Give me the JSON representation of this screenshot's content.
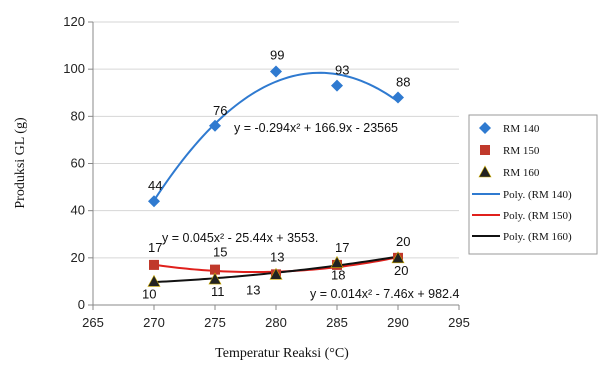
{
  "chart_data": {
    "type": "scatter",
    "xlabel": "Temperatur Reaksi (°C)",
    "ylabel": "Produksi GL (g)",
    "xlim": [
      265,
      295
    ],
    "ylim": [
      0,
      120
    ],
    "x_ticks": [
      "265",
      "270",
      "275",
      "280",
      "285",
      "290",
      "295"
    ],
    "y_ticks": [
      "0",
      "20",
      "40",
      "60",
      "80",
      "100",
      "120"
    ],
    "grid": "horizontal",
    "legend_position": "right",
    "series": [
      {
        "name": "RM 140",
        "marker": "diamond",
        "color": "#2f7ad0",
        "x": [
          270,
          275,
          280,
          285,
          290
        ],
        "y": [
          44,
          76,
          99,
          93,
          88
        ],
        "labels": [
          "44",
          "76",
          "99",
          "93",
          "88"
        ]
      },
      {
        "name": "RM 150",
        "marker": "square",
        "color": "#c0392b",
        "x": [
          270,
          275,
          280,
          285,
          290
        ],
        "y": [
          17,
          15,
          13,
          17,
          20
        ],
        "labels": [
          "17",
          "15",
          "13",
          "17",
          "20"
        ]
      },
      {
        "name": "RM 160",
        "marker": "triangle",
        "color": "#222222",
        "x": [
          270,
          275,
          280,
          285,
          290
        ],
        "y": [
          10,
          11,
          13,
          18,
          20
        ],
        "labels": [
          "10",
          "11",
          "13",
          "18",
          "20"
        ]
      }
    ],
    "trendlines": [
      {
        "name": "Poly. (RM 140)",
        "color": "#2f7ad0",
        "coef": [
          -0.294,
          166.9,
          -23565
        ],
        "equation": "y = -0.294x² + 166.9x - 23565"
      },
      {
        "name": "Poly. (RM 150)",
        "color": "#e0201c",
        "coef": [
          0.045,
          -25.44,
          3553
        ],
        "equation": "y = 0.045x² - 25.44x + 3553."
      },
      {
        "name": "Poly. (RM 160)",
        "color": "#111111",
        "coef": [
          0.014,
          -7.46,
          982.4
        ],
        "equation": "y = 0.014x² - 7.46x + 982.4"
      }
    ]
  }
}
